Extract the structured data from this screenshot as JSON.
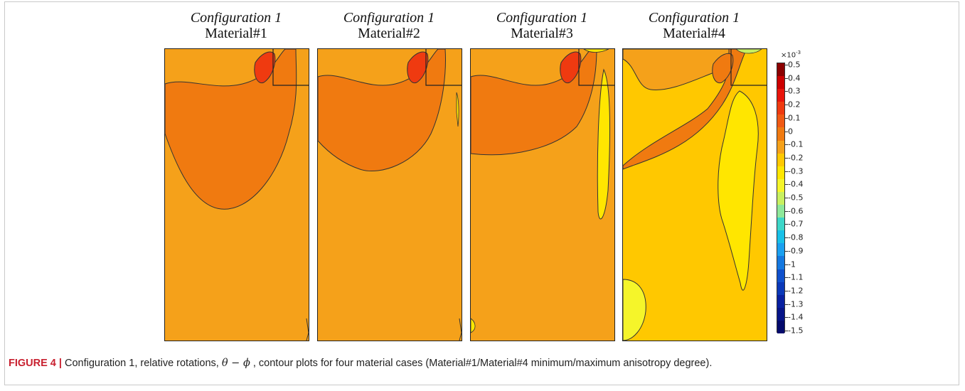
{
  "panels": [
    {
      "configuration": "Configuration 1",
      "material": "Material#1"
    },
    {
      "configuration": "Configuration 1",
      "material": "Material#2"
    },
    {
      "configuration": "Configuration 1",
      "material": "Material#3"
    },
    {
      "configuration": "Configuration 1",
      "material": "Material#4"
    }
  ],
  "colorbar": {
    "multiplier_base": "×10",
    "multiplier_exp": "-3",
    "ticks": [
      "0.5",
      "0.4",
      "0.3",
      "0.2",
      "0.1",
      "0",
      "-0.1",
      "-0.2",
      "-0.3",
      "-0.4",
      "-0.5",
      "-0.6",
      "-0.7",
      "-0.8",
      "-0.9",
      "-1",
      "-1.1",
      "-1.2",
      "-1.3",
      "-1.4",
      "-1.5"
    ],
    "colors": {
      "p05": "#8b0000",
      "p04": "#cc0000",
      "p03": "#e8140b",
      "p02": "#ef3a10",
      "p01": "#f05a14",
      "p00": "#f07a10",
      "n00": "#f5a11a",
      "n01": "#ffc800",
      "n02": "#ffe600",
      "n03": "#f5f52a",
      "n04": "#c8f060",
      "n05": "#8ee89a",
      "n06": "#3dd6c8",
      "n07": "#18c0e8",
      "n08": "#1aa0f0",
      "n09": "#1478e0",
      "n10": "#0f50cc",
      "n11": "#0a38b8",
      "n12": "#0820a0",
      "n13": "#061488",
      "n14": "#040a6c"
    }
  },
  "caption": {
    "label": "FIGURE 4 |",
    "text_before": " Configuration 1, relative rotations, ",
    "math": "θ − ϕ",
    "text_after": " , contour plots for four material cases (Material#1/Material#4 minimum/maximum anisotropy degree)."
  }
}
